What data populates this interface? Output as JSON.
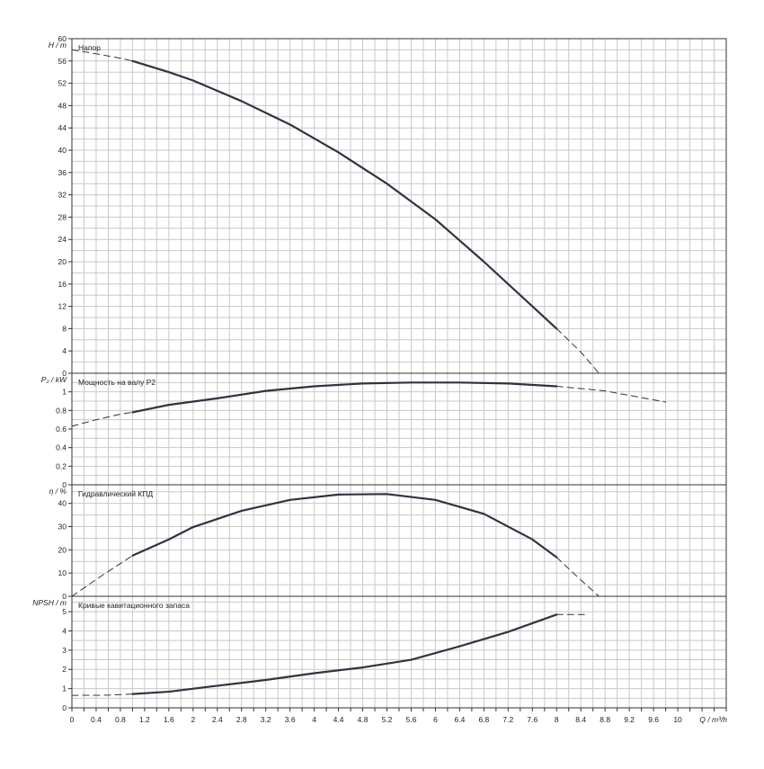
{
  "chart_data": [
    {
      "type": "line",
      "title": "Напор",
      "ylabel": "H / m",
      "ylim": [
        0,
        60
      ],
      "yticks": [
        0,
        4,
        8,
        12,
        16,
        20,
        24,
        28,
        32,
        36,
        40,
        44,
        48,
        52,
        56,
        60
      ],
      "series": [
        {
          "style": "dashed",
          "x": [
            0,
            0.4,
            0.8,
            1.0
          ],
          "y": [
            58.0,
            57.3,
            56.5,
            56.0
          ]
        },
        {
          "style": "solid",
          "x": [
            1.0,
            1.6,
            2.0,
            2.8,
            3.6,
            4.4,
            5.2,
            6.0,
            6.8,
            7.6,
            8.0
          ],
          "y": [
            56.0,
            54.0,
            52.5,
            48.8,
            44.6,
            39.6,
            34.0,
            27.6,
            20.0,
            12.0,
            8.0
          ]
        },
        {
          "style": "dashed",
          "x": [
            8.0,
            8.4,
            8.7
          ],
          "y": [
            8.0,
            3.8,
            0.0
          ]
        }
      ]
    },
    {
      "type": "line",
      "title": "Мощность на валу P2",
      "ylabel": "P₂ / kW",
      "ylim": [
        0,
        1.2
      ],
      "yticks": [
        0,
        0.2,
        0.4,
        0.6,
        0.8,
        1
      ],
      "series": [
        {
          "style": "dashed",
          "x": [
            0,
            0.4,
            0.8,
            1.0
          ],
          "y": [
            0.63,
            0.7,
            0.76,
            0.78
          ]
        },
        {
          "style": "solid",
          "x": [
            1.0,
            1.6,
            2.4,
            3.2,
            4.0,
            4.8,
            5.6,
            6.4,
            7.2,
            8.0
          ],
          "y": [
            0.78,
            0.86,
            0.93,
            1.01,
            1.06,
            1.09,
            1.1,
            1.1,
            1.09,
            1.06
          ]
        },
        {
          "style": "dashed",
          "x": [
            8.0,
            8.8,
            9.8
          ],
          "y": [
            1.06,
            1.01,
            0.89
          ]
        }
      ]
    },
    {
      "type": "line",
      "title": "Гидравлический КПД",
      "ylabel": "η / %",
      "ylim": [
        0,
        48
      ],
      "yticks": [
        0,
        10,
        20,
        30,
        40
      ],
      "series": [
        {
          "style": "dashed",
          "x": [
            0,
            0.5,
            1.0
          ],
          "y": [
            0,
            9,
            17.5
          ]
        },
        {
          "style": "solid",
          "x": [
            1.0,
            1.6,
            2.0,
            2.8,
            3.6,
            4.4,
            5.2,
            6.0,
            6.8,
            7.6,
            8.0
          ],
          "y": [
            17.5,
            24.5,
            29.8,
            36.8,
            41.5,
            43.8,
            44.0,
            41.5,
            35.5,
            24.5,
            16.8
          ]
        },
        {
          "style": "dashed",
          "x": [
            8.0,
            8.4,
            8.7
          ],
          "y": [
            16.8,
            7.0,
            0.0
          ]
        }
      ]
    },
    {
      "type": "line",
      "title": "Кривые кавитационного запаса",
      "ylabel": "NPSH / m",
      "ylim": [
        0,
        5.8
      ],
      "yticks": [
        0,
        1,
        2,
        3,
        4,
        5
      ],
      "xlabel": "Q / m³/h",
      "xticks": [
        "0",
        "0.4",
        "0.8",
        "1.2",
        "1.6",
        "2",
        "2.4",
        "2.8",
        "3.2",
        "3.6",
        "4",
        "4.4",
        "4.8",
        "5.2",
        "5.6",
        "6",
        "6.4",
        "6.8",
        "7.2",
        "7.6",
        "8",
        "8.4",
        "8.8",
        "9.2",
        "9.6",
        "10"
      ],
      "xlim": [
        0,
        10.8
      ],
      "series": [
        {
          "style": "dashed",
          "x": [
            0,
            0.6,
            1.0
          ],
          "y": [
            0.65,
            0.66,
            0.72
          ]
        },
        {
          "style": "solid",
          "x": [
            1.0,
            1.6,
            2.4,
            3.2,
            4.0,
            4.8,
            5.6,
            6.4,
            7.2,
            7.6,
            8.0
          ],
          "y": [
            0.72,
            0.84,
            1.15,
            1.45,
            1.8,
            2.1,
            2.5,
            3.2,
            3.95,
            4.4,
            4.85
          ]
        },
        {
          "style": "dashed",
          "x": [
            8.0,
            8.5
          ],
          "y": [
            4.85,
            4.85
          ]
        }
      ]
    }
  ]
}
